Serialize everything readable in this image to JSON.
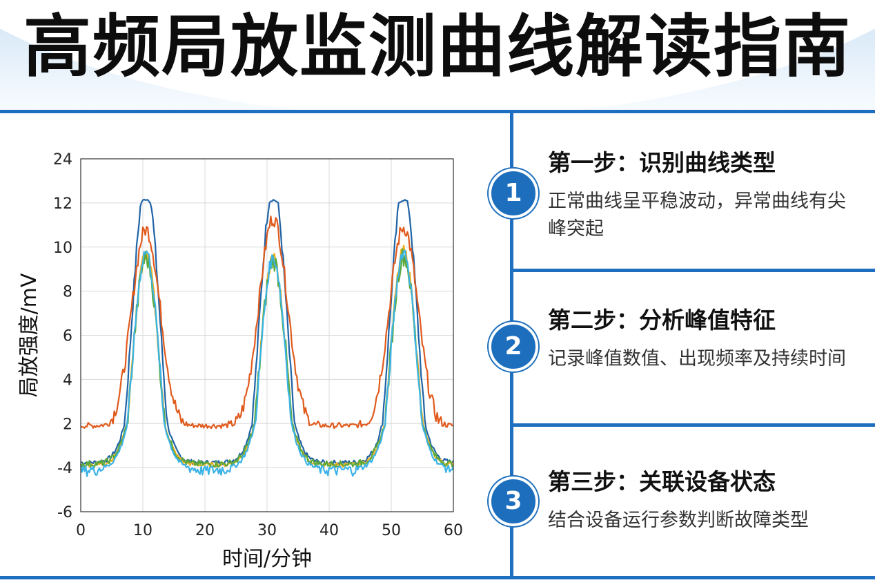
{
  "header": {
    "title": "高频局放监测曲线解读指南"
  },
  "steps": [
    {
      "number": "1",
      "title": "第一步：识别曲线类型",
      "desc": "正常曲线呈平稳波动，异常曲线有尖峰突起"
    },
    {
      "number": "2",
      "title": "第二步：分析峰值特征",
      "desc": "记录峰值数值、出现频率及持续时间"
    },
    {
      "number": "3",
      "title": "第三步：关联设备状态",
      "desc": "结合设备运行参数判断故障类型"
    }
  ],
  "chart_data": {
    "type": "line",
    "xlabel": "时间/分钟",
    "ylabel": "局放强度/mV",
    "xlim": [
      0,
      60
    ],
    "x_ticks": [
      "0",
      "10",
      "20",
      "30",
      "40",
      "50",
      "60"
    ],
    "y_tick_labels": [
      "-6",
      "-4",
      "2",
      "4",
      "6",
      "8",
      "10",
      "12",
      "24"
    ],
    "grid": true,
    "legend": "none",
    "peak_x": [
      10.5,
      31,
      52
    ],
    "series": [
      {
        "color": "#1f63a6",
        "peaks": [
          13.0,
          12.8,
          12.8
        ],
        "baseline": -3.3,
        "noise": 0.3
      },
      {
        "color": "#e05a1c",
        "peaks": [
          10.8,
          11.3,
          10.9
        ],
        "baseline": 1.7,
        "noise": 0.35
      },
      {
        "color": "#f2b120",
        "peaks": [
          9.7,
          9.5,
          9.8
        ],
        "baseline": -3.6,
        "noise": 0.3
      },
      {
        "color": "#5aa83a",
        "peaks": [
          9.5,
          9.4,
          9.6
        ],
        "baseline": -3.5,
        "noise": 0.45
      },
      {
        "color": "#3bb3e6",
        "peaks": [
          9.8,
          9.5,
          9.8
        ],
        "baseline": -4.1,
        "noise": 0.3
      }
    ]
  }
}
